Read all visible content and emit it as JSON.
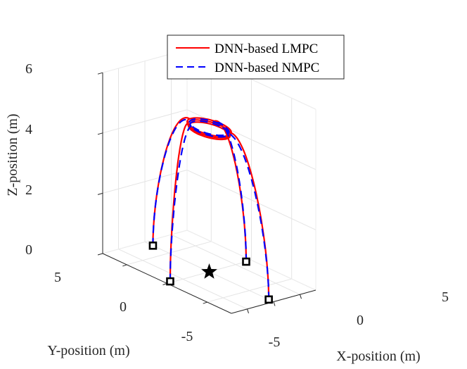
{
  "chart_data": {
    "type": "line3d",
    "title": "",
    "xlabel": "X-position (m)",
    "ylabel": "Y-position (m)",
    "zlabel": "Z-position (m)",
    "xlim": [
      -8,
      8
    ],
    "ylim": [
      -8,
      8
    ],
    "zlim": [
      0,
      6
    ],
    "x_ticks": [
      -5,
      0,
      5
    ],
    "y_ticks": [
      -5,
      0,
      5
    ],
    "z_ticks": [
      0,
      2,
      4,
      6
    ],
    "x_tick_labels": [
      "-5",
      "0",
      "5"
    ],
    "y_tick_labels": [
      "-5",
      "0",
      "5"
    ],
    "z_tick_labels": [
      "0",
      "2",
      "4",
      "6"
    ],
    "grid": true,
    "legend": {
      "location": "top-center",
      "entries": [
        "DNN-based LMPC",
        "DNN-based NMPC"
      ]
    },
    "series": [
      {
        "name": "DNN-based LMPC",
        "color": "#ff0000",
        "style": "solid",
        "trajectories": [
          {
            "start": [
              -7.1,
              0.2,
              0
            ],
            "end_on_circle_deg": 135
          },
          {
            "start": [
              0.0,
              -7.4,
              0
            ],
            "end_on_circle_deg": 300
          },
          {
            "start": [
              7.0,
              0.0,
              0
            ],
            "end_on_circle_deg": 20
          },
          {
            "start": [
              0.0,
              7.0,
              0
            ],
            "end_on_circle_deg": 95
          }
        ],
        "hover_orbit": {
          "center": [
            0,
            0,
            4.8
          ],
          "radius": 2.3
        }
      },
      {
        "name": "DNN-based NMPC",
        "color": "#0000ff",
        "style": "dashed",
        "trajectories": [
          {
            "start": [
              -7.1,
              0.2,
              0
            ],
            "end_on_circle_deg": 150
          },
          {
            "start": [
              0.0,
              -7.4,
              0
            ],
            "end_on_circle_deg": 290
          },
          {
            "start": [
              7.0,
              0.0,
              0
            ],
            "end_on_circle_deg": 10
          },
          {
            "start": [
              0.0,
              7.0,
              0
            ],
            "end_on_circle_deg": 110
          }
        ],
        "hover_orbit": {
          "center": [
            0,
            0,
            4.8
          ],
          "radius": 2.05
        }
      }
    ],
    "start_points": [
      [
        -7.1,
        0.2,
        0
      ],
      [
        0.0,
        -7.4,
        0
      ],
      [
        7.0,
        0.0,
        0
      ],
      [
        0.0,
        7.0,
        0
      ]
    ],
    "target_point": [
      0,
      0,
      0
    ]
  }
}
